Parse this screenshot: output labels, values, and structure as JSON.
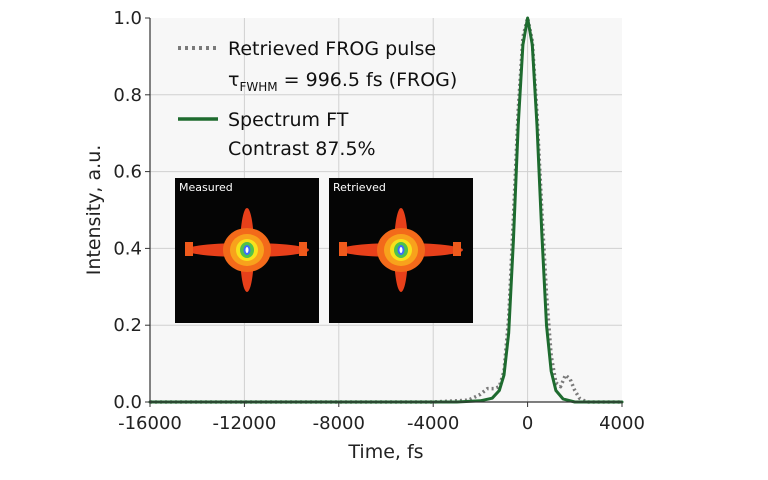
{
  "chart_data": {
    "type": "line",
    "xlabel": "Time, fs",
    "ylabel": "Intensity, a.u.",
    "xlim": [
      -16000,
      4000
    ],
    "ylim": [
      0,
      1.0
    ],
    "x_ticks": [
      -16000,
      -12000,
      -8000,
      -4000,
      0,
      4000
    ],
    "x_tick_labels": [
      "-16000",
      "-12000",
      "-8000",
      "-4000",
      "0",
      "4000"
    ],
    "y_ticks": [
      0.0,
      0.2,
      0.4,
      0.6,
      0.8,
      1.0
    ],
    "y_tick_labels": [
      "0.0",
      "0.2",
      "0.4",
      "0.6",
      "0.8",
      "1.0"
    ],
    "grid": true,
    "legend_placement": "top-left",
    "series": [
      {
        "name": "Retrieved FROG pulse",
        "legend_line2_prefix": "τ",
        "legend_line2_sub": "FWHM",
        "legend_line2_rest": " = 996.5 fs (FROG)",
        "style": "dotted",
        "color": "#7a7a7a",
        "x": [
          -16000,
          -4000,
          -2500,
          -2000,
          -1700,
          -1400,
          -1200,
          -1000,
          -800,
          -600,
          -400,
          -200,
          0,
          200,
          400,
          600,
          800,
          1000,
          1200,
          1400,
          1600,
          1800,
          2000,
          2200,
          2500,
          3000,
          4000
        ],
        "y": [
          0.0,
          0.0,
          0.005,
          0.02,
          0.035,
          0.035,
          0.04,
          0.08,
          0.22,
          0.48,
          0.76,
          0.95,
          1.0,
          0.94,
          0.75,
          0.5,
          0.28,
          0.12,
          0.05,
          0.04,
          0.07,
          0.06,
          0.03,
          0.01,
          0.0,
          0.0,
          0.0
        ]
      },
      {
        "name": "Spectrum FT",
        "legend_line2": "Contrast 87.5%",
        "style": "solid",
        "color": "#1e6b2f",
        "x": [
          -16000,
          -3000,
          -2000,
          -1500,
          -1200,
          -1000,
          -800,
          -600,
          -400,
          -200,
          0,
          200,
          400,
          600,
          800,
          1000,
          1200,
          1500,
          2000,
          3000,
          4000
        ],
        "y": [
          0.0,
          0.0,
          0.003,
          0.01,
          0.03,
          0.07,
          0.18,
          0.42,
          0.72,
          0.93,
          1.0,
          0.93,
          0.72,
          0.44,
          0.2,
          0.08,
          0.03,
          0.008,
          0.0,
          0.0,
          0.0
        ]
      }
    ],
    "insets": [
      {
        "label": "Measured"
      },
      {
        "label": "Retrieved"
      }
    ]
  },
  "colors": {
    "background": "#f7f7f7",
    "grid": "#d0d0d0",
    "axis": "#333333",
    "inset_background": "#050505"
  }
}
